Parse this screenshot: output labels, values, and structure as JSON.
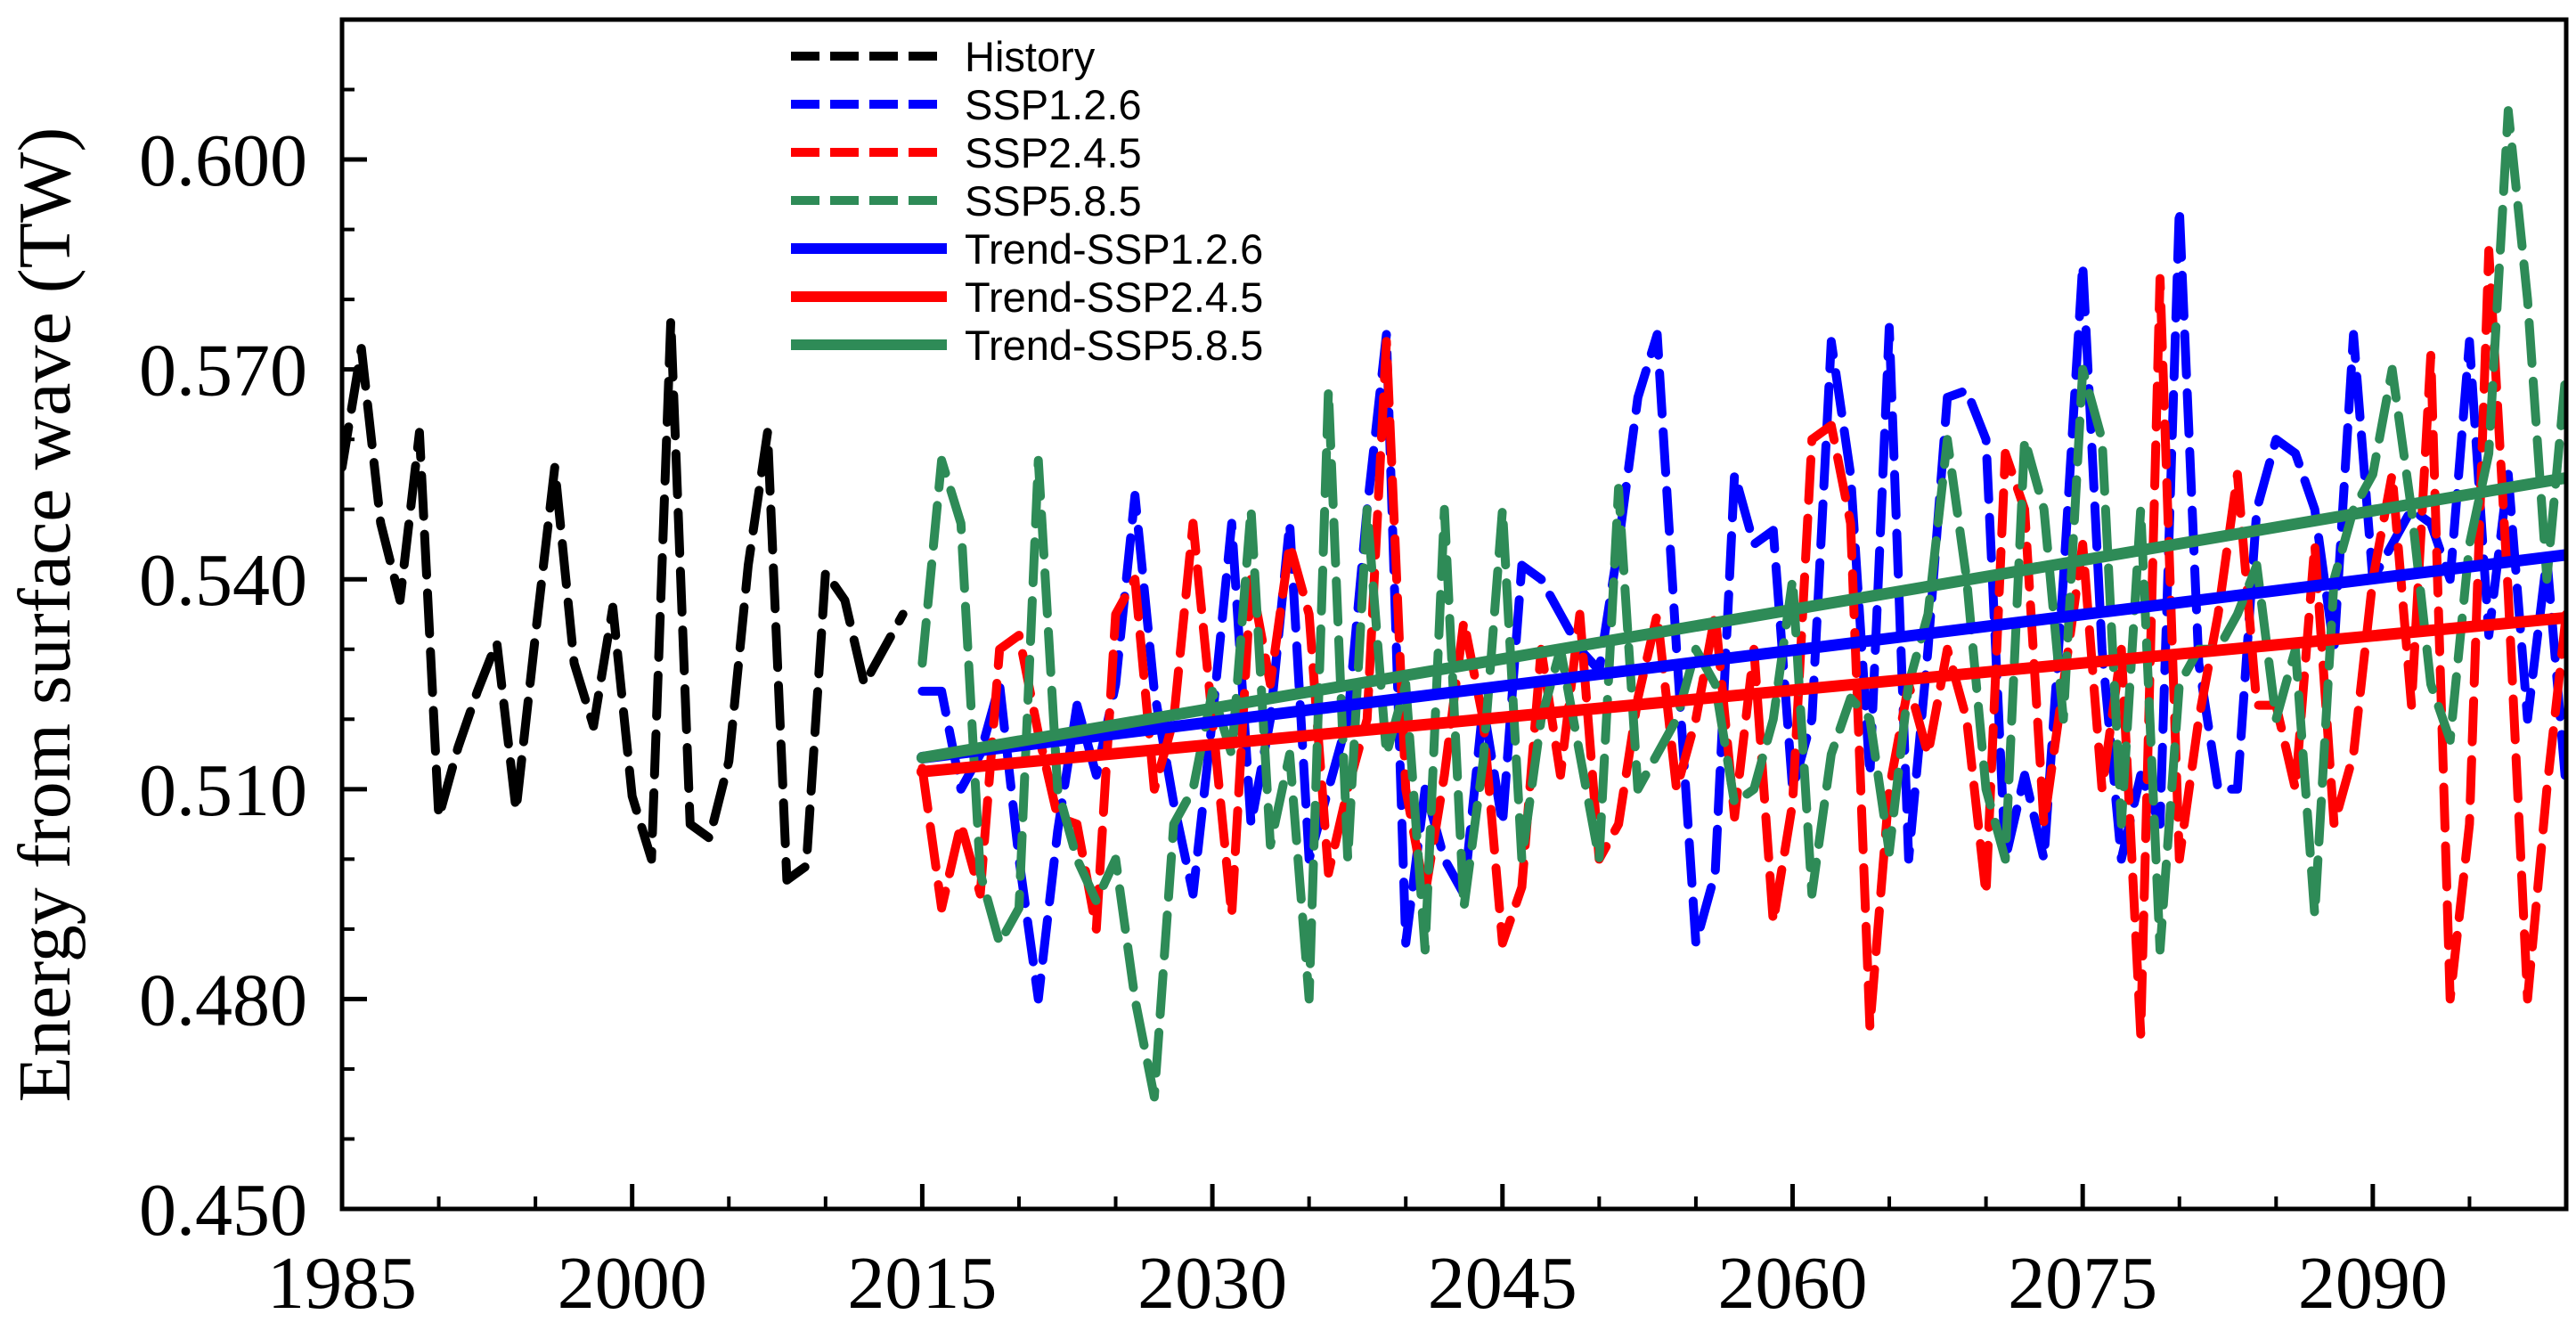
{
  "chart_data": {
    "type": "line",
    "title": "",
    "xlabel": "",
    "ylabel": "Energy from surface wave (TW)",
    "xlim": [
      1985,
      2100
    ],
    "ylim": [
      0.45,
      0.62
    ],
    "x_ticks": [
      "1985",
      "2000",
      "2015",
      "2030",
      "2045",
      "2060",
      "2075",
      "2090"
    ],
    "y_ticks": [
      "0.450",
      "0.480",
      "0.510",
      "0.540",
      "0.570",
      "0.600"
    ],
    "legend_position": "top-center",
    "series": [
      {
        "name": "History",
        "style": "dashed",
        "color": "#000000",
        "x_start": 1985,
        "values": [
          0.556,
          0.573,
          0.548,
          0.537,
          0.561,
          0.506,
          0.516,
          0.524,
          0.531,
          0.507,
          0.532,
          0.556,
          0.528,
          0.519,
          0.536,
          0.509,
          0.5,
          0.577,
          0.505,
          0.503,
          0.514,
          0.542,
          0.561,
          0.497,
          0.499,
          0.541,
          0.537,
          0.525,
          0.53,
          0.535
        ]
      },
      {
        "name": "SSP1.2.6",
        "style": "dashed",
        "color": "#0000ff",
        "x_start": 2015,
        "values": [
          0.524,
          0.524,
          0.51,
          0.515,
          0.525,
          0.5,
          0.48,
          0.504,
          0.522,
          0.512,
          0.525,
          0.552,
          0.524,
          0.508,
          0.495,
          0.52,
          0.548,
          0.505,
          0.52,
          0.548,
          0.5,
          0.51,
          0.52,
          0.55,
          0.575,
          0.488,
          0.51,
          0.5,
          0.495,
          0.522,
          0.505,
          0.542,
          0.54,
          0.535,
          0.53,
          0.527,
          0.545,
          0.566,
          0.575,
          0.53,
          0.488,
          0.498,
          0.555,
          0.545,
          0.547,
          0.51,
          0.52,
          0.574,
          0.555,
          0.512,
          0.576,
          0.5,
          0.53,
          0.566,
          0.567,
          0.56,
          0.5,
          0.512,
          0.5,
          0.54,
          0.585,
          0.53,
          0.5,
          0.512,
          0.505,
          0.593,
          0.528,
          0.51,
          0.51,
          0.55,
          0.56,
          0.558,
          0.55,
          0.53,
          0.575,
          0.54,
          0.545,
          0.55,
          0.548,
          0.54,
          0.574,
          0.532,
          0.555,
          0.52,
          0.543,
          0.51
        ]
      },
      {
        "name": "SSP2.4.5",
        "style": "dashed",
        "color": "#ff0000",
        "x_start": 2015,
        "values": [
          0.513,
          0.493,
          0.505,
          0.495,
          0.53,
          0.532,
          0.518,
          0.506,
          0.505,
          0.49,
          0.535,
          0.54,
          0.51,
          0.52,
          0.548,
          0.52,
          0.492,
          0.54,
          0.525,
          0.545,
          0.535,
          0.498,
          0.51,
          0.52,
          0.574,
          0.51,
          0.495,
          0.512,
          0.534,
          0.52,
          0.488,
          0.496,
          0.53,
          0.512,
          0.535,
          0.5,
          0.505,
          0.523,
          0.535,
          0.51,
          0.52,
          0.535,
          0.506,
          0.53,
          0.491,
          0.508,
          0.56,
          0.562,
          0.548,
          0.476,
          0.51,
          0.525,
          0.515,
          0.53,
          0.52,
          0.495,
          0.558,
          0.55,
          0.505,
          0.525,
          0.545,
          0.51,
          0.53,
          0.475,
          0.583,
          0.5,
          0.52,
          0.535,
          0.555,
          0.522,
          0.522,
          0.51,
          0.545,
          0.505,
          0.515,
          0.54,
          0.555,
          0.522,
          0.572,
          0.48,
          0.505,
          0.587,
          0.538,
          0.48,
          0.51,
          0.535
        ]
      },
      {
        "name": "SSP5.8.5",
        "style": "dashed",
        "color": "#2e8b57",
        "x_start": 2015,
        "values": [
          0.528,
          0.557,
          0.548,
          0.498,
          0.488,
          0.493,
          0.557,
          0.51,
          0.5,
          0.494,
          0.5,
          0.48,
          0.466,
          0.505,
          0.51,
          0.524,
          0.515,
          0.55,
          0.502,
          0.515,
          0.48,
          0.567,
          0.5,
          0.55,
          0.515,
          0.525,
          0.487,
          0.55,
          0.493,
          0.514,
          0.55,
          0.5,
          0.52,
          0.53,
          0.515,
          0.5,
          0.553,
          0.51,
          0.515,
          0.52,
          0.53,
          0.525,
          0.508,
          0.51,
          0.52,
          0.54,
          0.495,
          0.515,
          0.523,
          0.52,
          0.501,
          0.525,
          0.535,
          0.56,
          0.54,
          0.51,
          0.5,
          0.56,
          0.55,
          0.52,
          0.57,
          0.56,
          0.505,
          0.55,
          0.487,
          0.525,
          0.53,
          0.53,
          0.535,
          0.542,
          0.52,
          0.53,
          0.492,
          0.54,
          0.55,
          0.555,
          0.57,
          0.55,
          0.525,
          0.517,
          0.545,
          0.558,
          0.607,
          0.58,
          0.54,
          0.57
        ]
      },
      {
        "name": "Trend-SSP1.2.6",
        "style": "solid",
        "color": "#0000ff",
        "x": [
          2015,
          2100
        ],
        "values": [
          0.5145,
          0.5435
        ]
      },
      {
        "name": "Trend-SSP2.4.5",
        "style": "solid",
        "color": "#ff0000",
        "x": [
          2015,
          2100
        ],
        "values": [
          0.5125,
          0.5345
        ]
      },
      {
        "name": "Trend-SSP5.8.5",
        "style": "solid",
        "color": "#2e8b57",
        "x": [
          2015,
          2100
        ],
        "values": [
          0.5145,
          0.5545
        ]
      }
    ]
  }
}
